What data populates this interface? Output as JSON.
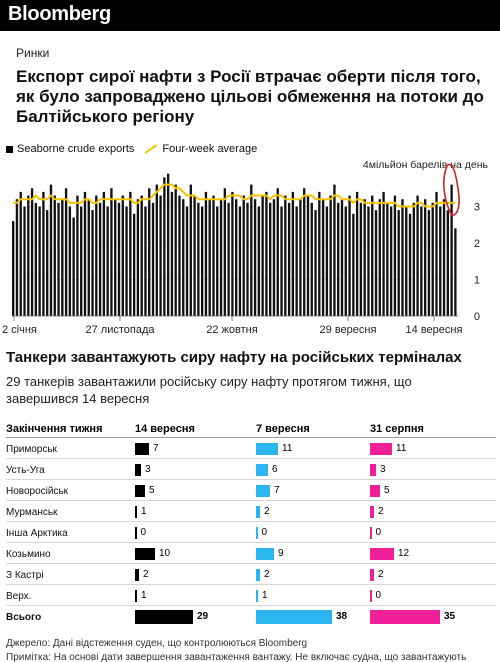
{
  "brand": {
    "logo": "Bloomberg"
  },
  "article": {
    "kicker": "Ринки",
    "headline": "Експорт сирої нафти з Росії втрачає оберти після того, як було запроваджено цільові обмеження на потоки до Балтійського регіону"
  },
  "chart_data": {
    "type": "bar",
    "title": "",
    "legend": [
      {
        "name": "Seaborne crude exports",
        "color": "#000000",
        "kind": "bar"
      },
      {
        "name": "Four-week average",
        "color": "#f5c400",
        "kind": "line"
      }
    ],
    "unit_label": "4мільйон барелів на день",
    "ylim": [
      0,
      4
    ],
    "yticks": [
      "0",
      "1",
      "2",
      "3"
    ],
    "xtick_labels": [
      "2 січня",
      "27 листопада",
      "22 жовтня",
      "29 вересня",
      "14 вересня"
    ],
    "series": [
      {
        "name": "Seaborne crude exports",
        "values": [
          2.6,
          3.2,
          3.4,
          3.0,
          3.3,
          3.5,
          3.1,
          3.0,
          3.4,
          2.9,
          3.6,
          3.3,
          3.1,
          3.2,
          3.5,
          3.0,
          2.7,
          3.3,
          3.0,
          3.4,
          3.2,
          2.9,
          3.3,
          3.1,
          3.4,
          3.0,
          3.5,
          3.2,
          3.1,
          3.3,
          3.0,
          3.4,
          2.8,
          3.2,
          3.3,
          3.0,
          3.5,
          3.1,
          3.6,
          3.3,
          3.8,
          3.9,
          3.4,
          3.6,
          3.3,
          3.2,
          3.0,
          3.6,
          3.3,
          3.1,
          3.0,
          3.4,
          3.2,
          3.3,
          3.0,
          3.2,
          3.5,
          3.1,
          3.4,
          3.2,
          3.0,
          3.3,
          3.1,
          3.6,
          3.2,
          3.0,
          3.3,
          3.4,
          3.1,
          3.2,
          3.5,
          3.0,
          3.3,
          3.1,
          3.4,
          3.0,
          3.2,
          3.5,
          3.3,
          3.1,
          2.9,
          3.4,
          3.2,
          3.0,
          3.3,
          3.6,
          3.1,
          3.2,
          3.0,
          3.3,
          2.8,
          3.4,
          3.1,
          3.2,
          3.0,
          3.3,
          2.9,
          3.2,
          3.4,
          3.1,
          3.0,
          3.3,
          2.9,
          3.2,
          3.0,
          2.8,
          3.1,
          3.3,
          3.0,
          3.2,
          2.9,
          3.1,
          3.4,
          3.0,
          3.2,
          2.9,
          3.6,
          2.4
        ]
      },
      {
        "name": "Four-week average",
        "values": [
          3.1,
          3.1,
          3.2,
          3.2,
          3.2,
          3.2,
          3.3,
          3.2,
          3.2,
          3.2,
          3.3,
          3.2,
          3.2,
          3.2,
          3.2,
          3.1,
          3.1,
          3.1,
          3.1,
          3.2,
          3.2,
          3.1,
          3.1,
          3.2,
          3.2,
          3.2,
          3.2,
          3.2,
          3.2,
          3.2,
          3.2,
          3.2,
          3.1,
          3.1,
          3.2,
          3.2,
          3.2,
          3.3,
          3.4,
          3.5,
          3.6,
          3.6,
          3.6,
          3.5,
          3.5,
          3.4,
          3.3,
          3.3,
          3.3,
          3.2,
          3.2,
          3.2,
          3.2,
          3.2,
          3.2,
          3.2,
          3.2,
          3.3,
          3.3,
          3.3,
          3.3,
          3.2,
          3.2,
          3.3,
          3.3,
          3.3,
          3.3,
          3.3,
          3.2,
          3.3,
          3.3,
          3.3,
          3.2,
          3.2,
          3.2,
          3.2,
          3.2,
          3.3,
          3.3,
          3.3,
          3.2,
          3.2,
          3.2,
          3.2,
          3.2,
          3.3,
          3.3,
          3.2,
          3.2,
          3.2,
          3.1,
          3.2,
          3.2,
          3.1,
          3.1,
          3.1,
          3.1,
          3.1,
          3.1,
          3.1,
          3.1,
          3.1,
          3.0,
          3.0,
          3.0,
          3.0,
          3.0,
          3.1,
          3.1,
          3.0,
          3.0,
          3.0,
          3.1,
          3.1,
          3.1,
          3.1,
          3.1,
          3.1
        ]
      }
    ],
    "highlight": {
      "note": "red hand-drawn oval around latest week",
      "color": "#d22222"
    }
  },
  "section2": {
    "title": "Танкери завантажують сиру нафту на російських терміналах",
    "subtitle": "29 танкерів завантажили російську сиру нафту протягом тижня, що завершився 14 вересня"
  },
  "table": {
    "header_label": "Закінчення тижня",
    "columns": [
      {
        "label": "14 вересня",
        "color": "#000000"
      },
      {
        "label": "7 вересня",
        "color": "#2bb6f0"
      },
      {
        "label": "31 серпня",
        "color": "#f0209a"
      }
    ],
    "max_value": 38,
    "rows": [
      {
        "name": "Приморськ",
        "values": [
          7,
          11,
          11
        ]
      },
      {
        "name": "Усть-Уга",
        "values": [
          3,
          6,
          3
        ]
      },
      {
        "name": "Новоросійськ",
        "values": [
          5,
          7,
          5
        ]
      },
      {
        "name": "Мурманськ",
        "values": [
          1,
          2,
          2
        ]
      },
      {
        "name": "Інша Арктика",
        "values": [
          0,
          0,
          0
        ]
      },
      {
        "name": "Козьмино",
        "values": [
          10,
          9,
          12
        ]
      },
      {
        "name": "З Кастрі",
        "values": [
          2,
          2,
          2
        ]
      },
      {
        "name": "Верх.",
        "values": [
          1,
          1,
          0
        ]
      }
    ],
    "total": {
      "name": "Всього",
      "values": [
        29,
        38,
        35
      ]
    }
  },
  "footer": {
    "source": "Джерело: Дані відстеження суден, що контролюються Bloomberg",
    "note": "Примітка: На основі дати завершення завантаження вантажу. Не включає судна, що завантажують"
  }
}
